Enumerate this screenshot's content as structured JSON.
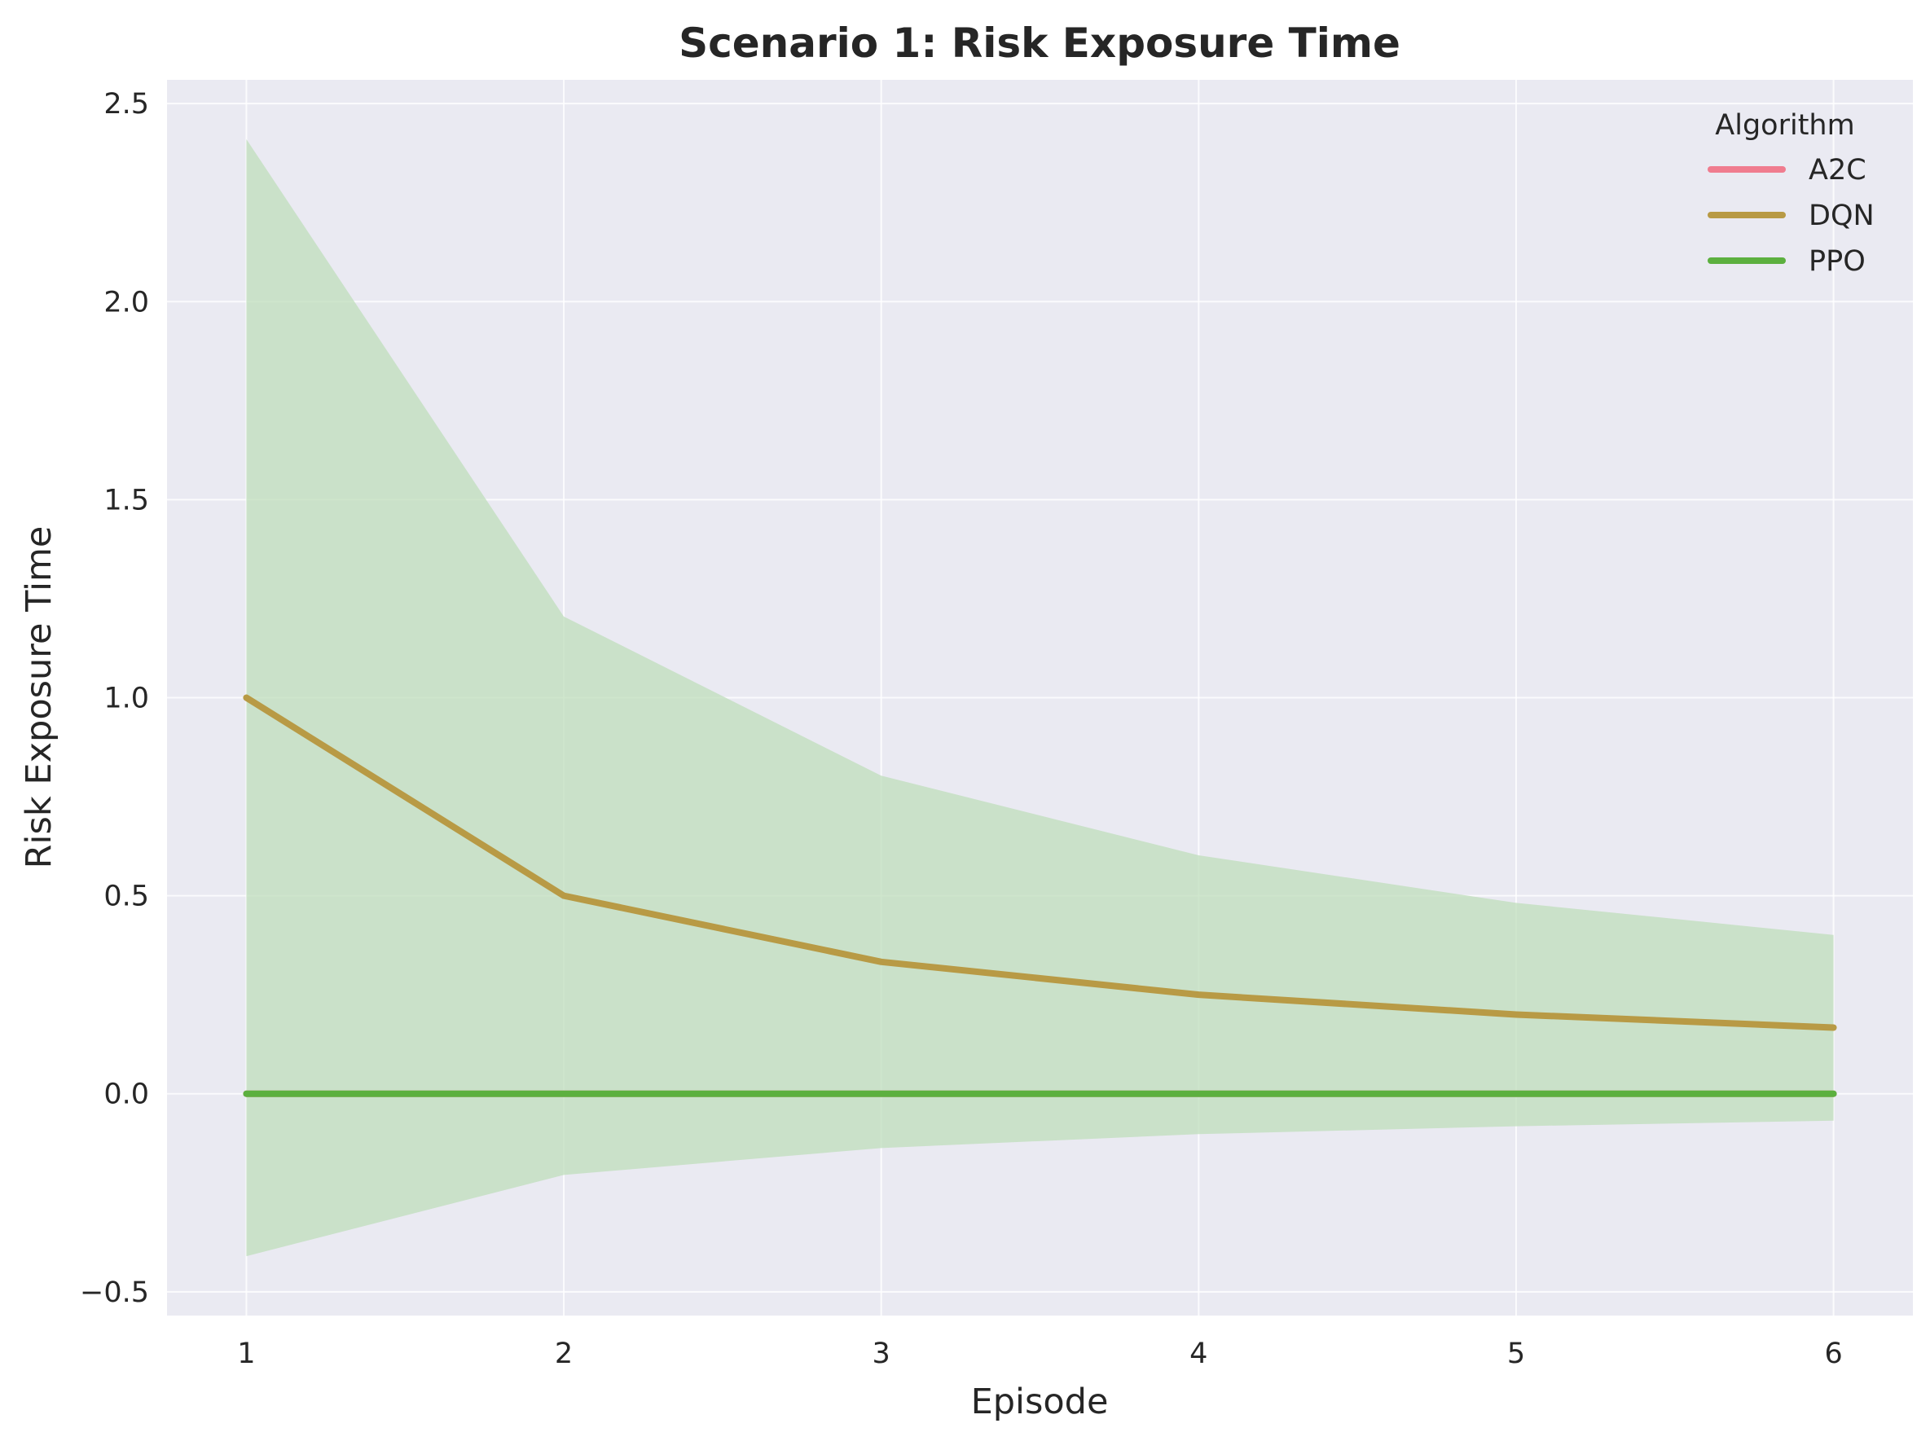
{
  "chart_data": {
    "type": "line",
    "title": "Scenario 1: Risk Exposure Time",
    "xlabel": "Episode",
    "ylabel": "Risk Exposure Time",
    "x": [
      1,
      2,
      3,
      4,
      5,
      6
    ],
    "xlim": [
      0.75,
      6.25
    ],
    "ylim": [
      -0.56,
      2.56
    ],
    "xticks": [
      1,
      2,
      3,
      4,
      5,
      6
    ],
    "yticks": [
      -0.5,
      0.0,
      0.5,
      1.0,
      1.5,
      2.0,
      2.5
    ],
    "ytick_labels": [
      "−0.5",
      "0.0",
      "0.5",
      "1.0",
      "1.5",
      "2.0",
      "2.5"
    ],
    "grid": true,
    "legend": {
      "title": "Algorithm",
      "placement": "top-right"
    },
    "series": [
      {
        "name": "A2C",
        "color": "#f07c8f",
        "values": [
          0,
          0,
          0,
          0,
          0,
          0
        ],
        "band": null
      },
      {
        "name": "DQN",
        "color": "#b89a45",
        "values": [
          1.0,
          0.5,
          0.333,
          0.25,
          0.2,
          0.167
        ],
        "band": null
      },
      {
        "name": "PPO",
        "color": "#5cb03f",
        "values": [
          0,
          0,
          0,
          0,
          0,
          0
        ],
        "band": {
          "color": "#bfddbb",
          "upper": [
            2.41,
            1.205,
            0.803,
            0.602,
            0.482,
            0.401
          ],
          "lower": [
            -0.41,
            -0.205,
            -0.137,
            -0.102,
            -0.082,
            -0.068
          ]
        }
      }
    ],
    "colors": {
      "plot_background": "#eaeaf2",
      "grid": "#ffffff",
      "text": "#262626"
    }
  }
}
